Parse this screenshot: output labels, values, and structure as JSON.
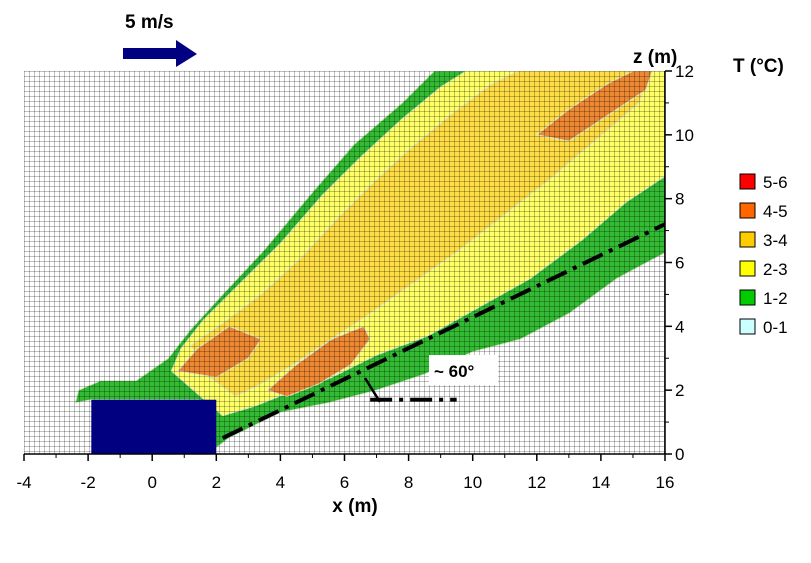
{
  "chart_data": {
    "type": "heatmap",
    "xlabel": "x (m)",
    "ylabel": "z (m)",
    "xlim": [
      -4,
      16
    ],
    "ylim": [
      0,
      12
    ],
    "xticks": [
      -4,
      -2,
      0,
      2,
      4,
      6,
      8,
      10,
      12,
      14,
      16
    ],
    "yticks": [
      0,
      2,
      4,
      6,
      8,
      10,
      12
    ],
    "grid": true,
    "legend": {
      "title": "T (°C)",
      "placement": "right",
      "entries": [
        {
          "label": "5-6",
          "color": "#ff0000"
        },
        {
          "label": "4-5",
          "color": "#ff6600"
        },
        {
          "label": "3-4",
          "color": "#ffcc00"
        },
        {
          "label": "2-3",
          "color": "#ffff00"
        },
        {
          "label": "1-2",
          "color": "#00cc00"
        },
        {
          "label": "0-1",
          "color": "#ccffff"
        }
      ]
    },
    "wind": {
      "label": "5 m/s",
      "color": "#000080"
    },
    "obstacle": {
      "x": [
        -1.9,
        2.0
      ],
      "z": [
        0,
        1.7
      ],
      "color": "#000080"
    },
    "bands": [
      {
        "range": "1-2",
        "color": "#33bb33",
        "polygon": [
          [
            -2.4,
            1.6
          ],
          [
            -2.3,
            2.0
          ],
          [
            -1.6,
            2.3
          ],
          [
            -0.5,
            2.3
          ],
          [
            0.5,
            3.0
          ],
          [
            1.2,
            3.9
          ],
          [
            2.2,
            5.0
          ],
          [
            3.5,
            6.4
          ],
          [
            5.0,
            8.2
          ],
          [
            6.3,
            9.7
          ],
          [
            7.8,
            11.0
          ],
          [
            8.8,
            12.0
          ],
          [
            16.0,
            12.0
          ],
          [
            16.0,
            6.3
          ],
          [
            14.5,
            5.5
          ],
          [
            13.0,
            4.4
          ],
          [
            11.5,
            3.6
          ],
          [
            10.0,
            3.2
          ],
          [
            8.5,
            2.5
          ],
          [
            7.0,
            2.0
          ],
          [
            5.5,
            1.6
          ],
          [
            4.0,
            1.3
          ],
          [
            2.4,
            0.5
          ],
          [
            2.0,
            0.2
          ],
          [
            1.5,
            1.7
          ],
          [
            -1.9,
            1.7
          ]
        ]
      },
      {
        "range": "2-3",
        "color": "#ffff66",
        "polygon": [
          [
            0.9,
            3.3
          ],
          [
            1.6,
            4.2
          ],
          [
            2.6,
            5.2
          ],
          [
            4.0,
            6.6
          ],
          [
            5.3,
            8.1
          ],
          [
            6.5,
            9.3
          ],
          [
            7.8,
            10.5
          ],
          [
            9.0,
            11.5
          ],
          [
            9.8,
            12.0
          ],
          [
            16.0,
            12.0
          ],
          [
            16.0,
            8.7
          ],
          [
            14.8,
            7.9
          ],
          [
            13.4,
            6.7
          ],
          [
            11.8,
            5.5
          ],
          [
            10.2,
            4.6
          ],
          [
            8.6,
            3.7
          ],
          [
            7.0,
            3.1
          ],
          [
            5.6,
            2.4
          ],
          [
            4.2,
            1.9
          ],
          [
            3.2,
            1.5
          ],
          [
            2.2,
            1.2
          ],
          [
            1.4,
            1.9
          ],
          [
            0.6,
            2.6
          ]
        ]
      },
      {
        "range": "3-4",
        "color": "#ffdd44",
        "polygon": [
          [
            1.2,
            3.4
          ],
          [
            2.2,
            4.1
          ],
          [
            3.4,
            5.0
          ],
          [
            4.6,
            6.1
          ],
          [
            5.8,
            7.4
          ],
          [
            7.0,
            8.6
          ],
          [
            8.2,
            9.7
          ],
          [
            9.4,
            10.7
          ],
          [
            10.6,
            11.6
          ],
          [
            11.4,
            12.0
          ],
          [
            15.5,
            12.0
          ],
          [
            15.2,
            11.0
          ],
          [
            13.8,
            9.8
          ],
          [
            12.4,
            8.6
          ],
          [
            11.0,
            7.5
          ],
          [
            9.6,
            6.4
          ],
          [
            8.2,
            5.4
          ],
          [
            6.8,
            4.4
          ],
          [
            5.6,
            3.6
          ],
          [
            4.4,
            2.8
          ],
          [
            3.4,
            2.2
          ],
          [
            2.6,
            1.8
          ],
          [
            1.8,
            2.4
          ]
        ]
      },
      {
        "range": "4-5",
        "color": "#ee8833",
        "polygon": [
          [
            0.8,
            2.6
          ],
          [
            1.4,
            3.3
          ],
          [
            2.4,
            4.0
          ],
          [
            3.4,
            3.6
          ],
          [
            3.0,
            3.0
          ],
          [
            2.0,
            2.4
          ]
        ]
      },
      {
        "range": "4-5",
        "color": "#ee8833",
        "polygon": [
          [
            3.6,
            2.0
          ],
          [
            4.5,
            2.8
          ],
          [
            5.6,
            3.6
          ],
          [
            6.6,
            4.0
          ],
          [
            6.8,
            3.6
          ],
          [
            6.2,
            2.8
          ],
          [
            5.2,
            2.2
          ],
          [
            4.2,
            1.8
          ]
        ]
      },
      {
        "range": "4-5",
        "color": "#ee8833",
        "polygon": [
          [
            12.0,
            10.0
          ],
          [
            13.0,
            10.8
          ],
          [
            14.2,
            11.6
          ],
          [
            15.0,
            12.0
          ],
          [
            15.6,
            12.0
          ],
          [
            15.4,
            11.4
          ],
          [
            14.2,
            10.6
          ],
          [
            13.0,
            9.8
          ]
        ]
      }
    ],
    "centerline": [
      [
        2.2,
        0.5
      ],
      [
        16.0,
        7.2
      ]
    ],
    "reference_line": [
      [
        6.8,
        1.7
      ],
      [
        9.5,
        1.7
      ]
    ],
    "angle_annotation": "~ 60°"
  }
}
